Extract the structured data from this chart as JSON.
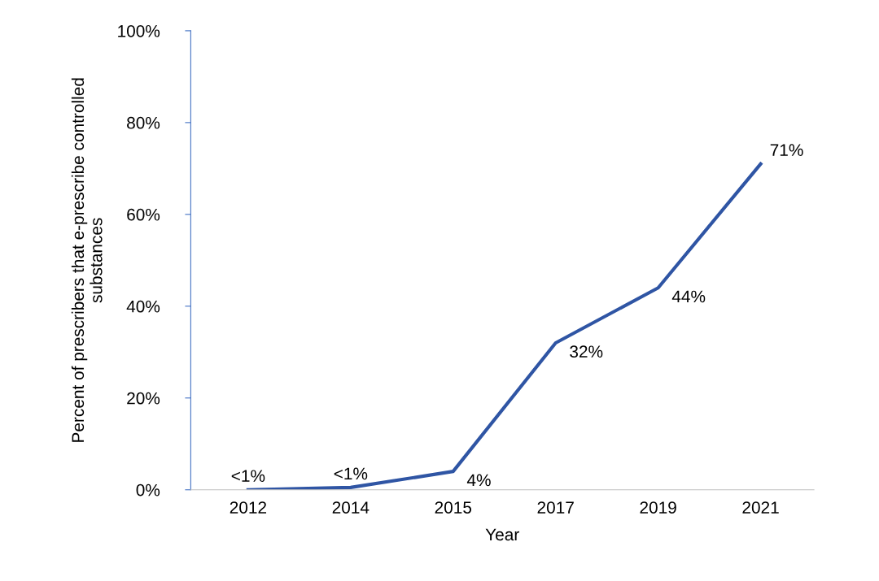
{
  "chart_data": {
    "type": "line",
    "xlabel": "Year",
    "ylabel": "Percent of prescribers that e-prescribe controlled substances",
    "categories": [
      "2012",
      "2014",
      "2015",
      "2017",
      "2019",
      "2021"
    ],
    "series": [
      {
        "color": "#2f55a4",
        "values": [
          0,
          0.5,
          4,
          32,
          44,
          71
        ],
        "value_labels": [
          "<1%",
          "<1%",
          "4%",
          "32%",
          "44%",
          "71%"
        ]
      }
    ],
    "ylim": [
      0,
      100
    ],
    "yticks": [
      {
        "value": 0,
        "label": "0%"
      },
      {
        "value": 20,
        "label": "20%"
      },
      {
        "value": 40,
        "label": "40%"
      },
      {
        "value": 60,
        "label": "60%"
      },
      {
        "value": 80,
        "label": "80%"
      },
      {
        "value": 100,
        "label": "100%"
      }
    ],
    "grid": false,
    "legend": false,
    "marker": "none",
    "line_style": "solid"
  }
}
